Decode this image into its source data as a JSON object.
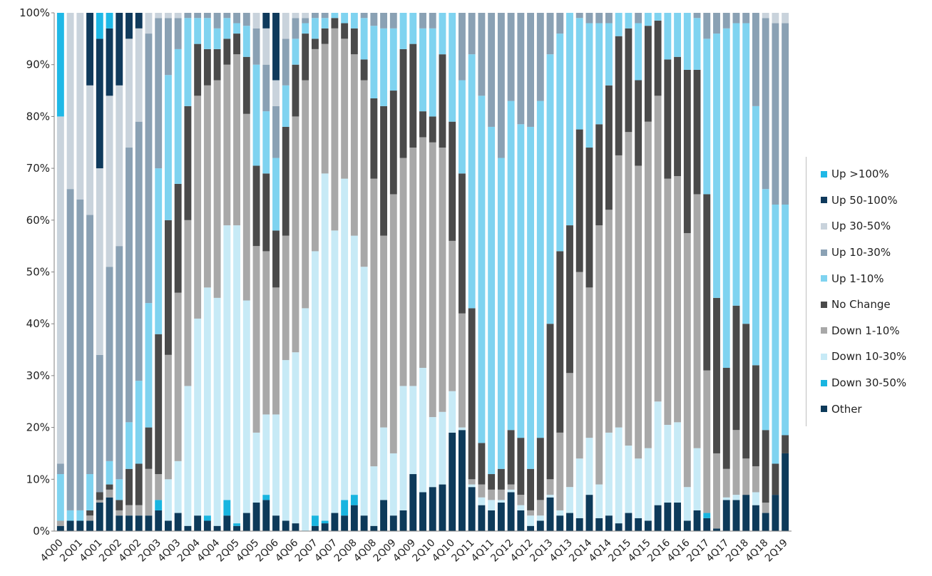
{
  "chart_data": {
    "type": "bar",
    "stacked": true,
    "percent_stacked": true,
    "title": "",
    "xlabel": "",
    "ylabel": "",
    "ylim": [
      0,
      100
    ],
    "y_ticks": [
      "0%",
      "10%",
      "20%",
      "30%",
      "40%",
      "50%",
      "60%",
      "70%",
      "80%",
      "90%",
      "100%"
    ],
    "x_tick_labels": [
      "4Q00",
      "2Q01",
      "4Q01",
      "2Q02",
      "4Q02",
      "2Q03",
      "4Q03",
      "2Q04",
      "4Q04",
      "2Q05",
      "4Q05",
      "2Q06",
      "4Q06",
      "2Q07",
      "4Q07",
      "2Q08",
      "4Q08",
      "2Q09",
      "4Q09",
      "2Q10",
      "4Q10",
      "2Q11",
      "4Q11",
      "2Q12",
      "4Q12",
      "2Q13",
      "4Q13",
      "2Q14",
      "4Q14",
      "2Q15",
      "4Q15",
      "2Q16",
      "4Q16",
      "2Q17",
      "4Q17",
      "2Q18",
      "4Q18",
      "2Q19"
    ],
    "grid": false,
    "legend_position": "right",
    "colors": {
      "Up >100%": "#1fb8e6",
      "Up 50-100%": "#0f3a5c",
      "Up 30-50%": "#c9d3dc",
      "Up 10-30%": "#8aa1b4",
      "Up 1-10%": "#7fd3f0",
      "No Change": "#4a4a4a",
      "Down 1-10%": "#a8a8a8",
      "Down 10-30%": "#c7eaf6",
      "Down 30-50%": "#19b5e0",
      "Other": "#0d3a5a"
    },
    "series_bottom_to_top": [
      "Other",
      "Down 30-50%",
      "Down 10-30%",
      "Down 1-10%",
      "No Change",
      "Up 1-10%",
      "Up 10-30%",
      "Up 30-50%",
      "Up 50-100%",
      "Up >100%"
    ],
    "cumulative_series_order": [
      "Other",
      "Down 30-50%",
      "Down 10-30%",
      "Down 1-10%",
      "No Change",
      "Up 1-10%",
      "Up 10-30%",
      "Up 30-50%",
      "Up 50-100%"
    ],
    "cumulative_tops": [
      [
        1,
        1,
        1,
        2,
        2,
        11,
        13,
        80,
        80,
        100
      ],
      [
        2,
        2,
        2,
        2,
        2,
        4,
        66,
        100,
        100,
        100
      ],
      [
        2,
        2,
        2,
        2,
        2,
        4,
        64,
        100,
        100,
        100
      ],
      [
        2,
        2,
        2,
        3,
        4,
        11,
        61,
        86,
        100,
        100
      ],
      [
        5.5,
        5.5,
        5.5,
        6,
        7.5,
        7.5,
        34,
        70,
        95,
        100
      ],
      [
        6.5,
        6.5,
        6.5,
        8,
        9,
        13.5,
        51,
        84,
        97,
        100
      ],
      [
        3,
        3,
        3,
        4,
        6,
        10,
        55,
        86,
        100,
        100
      ],
      [
        3,
        3,
        3,
        5,
        12,
        21,
        74,
        95,
        100,
        100
      ],
      [
        3,
        3,
        3,
        5,
        13,
        29,
        79,
        97,
        100,
        100
      ],
      [
        3,
        3,
        3,
        12,
        20,
        44,
        96,
        100,
        100,
        100
      ],
      [
        4,
        6,
        6,
        11,
        38,
        70,
        99,
        100,
        100,
        100
      ],
      [
        2,
        2,
        10,
        34,
        60,
        88,
        99,
        100,
        100,
        100
      ],
      [
        3.5,
        3.5,
        13.5,
        46,
        67,
        93,
        99,
        100,
        100,
        100
      ],
      [
        1,
        1,
        28,
        60,
        82,
        99,
        100,
        100,
        100,
        100
      ],
      [
        3,
        3,
        41,
        84,
        94,
        99,
        100,
        100,
        100,
        100
      ],
      [
        2,
        3,
        47,
        86,
        93,
        99,
        100,
        100,
        100,
        100
      ],
      [
        1,
        1,
        45,
        87,
        93,
        97,
        100,
        100,
        100,
        100
      ],
      [
        3,
        6,
        59,
        90,
        95,
        99,
        100,
        100,
        100,
        100
      ],
      [
        1,
        1.5,
        59,
        92,
        96,
        98,
        100,
        100,
        100,
        100
      ],
      [
        3.5,
        3.5,
        44.5,
        80.5,
        91.5,
        97.5,
        100,
        100,
        100,
        100
      ],
      [
        5.5,
        5.5,
        19,
        55,
        70.5,
        90,
        97,
        100,
        100,
        100
      ],
      [
        6,
        7,
        22.5,
        54,
        69,
        81,
        90,
        97,
        100,
        100
      ],
      [
        3,
        3,
        22.5,
        47,
        58,
        72,
        82,
        87,
        100,
        100
      ],
      [
        2,
        2,
        33,
        57,
        78,
        86,
        95,
        100,
        100,
        100
      ],
      [
        1.5,
        1.5,
        34.5,
        80,
        90,
        95,
        99,
        100,
        100,
        100
      ],
      [
        0,
        0,
        43,
        87,
        96,
        98,
        99,
        100,
        100,
        100
      ],
      [
        1,
        3,
        54,
        93,
        95,
        99,
        100,
        100,
        100,
        100
      ],
      [
        1.5,
        2,
        69,
        94,
        97,
        99,
        100,
        100,
        100,
        100
      ],
      [
        3.5,
        3.5,
        58,
        97,
        99,
        100,
        100,
        100,
        100,
        100
      ],
      [
        3,
        6,
        68,
        95,
        98,
        100,
        100,
        100,
        100,
        100
      ],
      [
        5,
        7,
        57,
        92,
        97,
        100,
        100,
        100,
        100,
        100
      ],
      [
        3,
        3,
        51,
        87,
        91,
        99,
        100,
        100,
        100,
        100
      ],
      [
        1,
        1,
        12.5,
        68,
        83.5,
        97.5,
        100,
        100,
        100,
        100
      ],
      [
        6,
        6,
        20,
        57,
        82,
        97,
        100,
        100,
        100,
        100
      ],
      [
        3,
        3,
        15,
        65,
        85,
        97,
        100,
        100,
        100,
        100
      ],
      [
        4,
        4,
        28,
        72,
        93,
        100,
        100,
        100,
        100,
        100
      ],
      [
        11,
        11,
        28,
        74,
        94,
        100,
        100,
        100,
        100,
        100
      ],
      [
        7.5,
        7.5,
        31.5,
        76,
        81,
        97,
        100,
        100,
        100,
        100
      ],
      [
        8.5,
        8.5,
        22,
        75,
        80,
        97,
        100,
        100,
        100,
        100
      ],
      [
        9,
        9,
        23,
        74,
        92,
        100,
        100,
        100,
        100,
        100
      ],
      [
        19,
        19,
        27,
        56,
        79,
        100,
        100,
        100,
        100,
        100
      ],
      [
        19.5,
        19.5,
        20,
        42,
        69,
        87,
        100,
        100,
        100,
        100
      ],
      [
        8.5,
        8.5,
        9,
        10,
        43,
        92,
        100,
        100,
        100,
        100
      ],
      [
        5,
        5,
        6.5,
        9,
        17,
        84,
        100,
        100,
        100,
        100
      ],
      [
        4,
        4,
        6,
        8,
        11,
        78,
        100,
        100,
        100,
        100
      ],
      [
        5.5,
        5.5,
        6,
        8,
        12,
        72,
        100,
        100,
        100,
        100
      ],
      [
        7.5,
        7.5,
        8,
        9,
        19.5,
        83,
        100,
        100,
        100,
        100
      ],
      [
        4,
        4,
        5,
        7,
        18,
        78.5,
        100,
        100,
        100,
        100
      ],
      [
        1,
        1,
        3,
        4,
        12,
        78,
        100,
        100,
        100,
        100
      ],
      [
        2,
        2,
        3,
        6,
        18,
        83,
        100,
        100,
        100,
        100
      ],
      [
        6.5,
        6.5,
        7,
        10,
        40,
        92,
        100,
        100,
        100,
        100
      ],
      [
        3,
        3,
        4,
        19,
        54,
        96,
        100,
        100,
        100,
        100
      ],
      [
        3.5,
        3.5,
        8.5,
        30.5,
        59,
        100,
        100,
        100,
        100,
        100
      ],
      [
        2.5,
        2.5,
        14,
        50,
        77.5,
        99,
        100,
        100,
        100,
        100
      ],
      [
        7,
        7,
        18,
        47,
        74,
        98,
        100,
        100,
        100,
        100
      ],
      [
        2.5,
        2.5,
        9,
        59,
        78.5,
        98,
        100,
        100,
        100,
        100
      ],
      [
        3,
        3,
        19,
        62,
        86,
        98,
        100,
        100,
        100,
        100
      ],
      [
        1.5,
        1.5,
        20,
        72.5,
        95.5,
        100,
        100,
        100,
        100,
        100
      ],
      [
        3.5,
        3.5,
        16.5,
        77,
        97,
        100,
        100,
        100,
        100,
        100
      ],
      [
        2.5,
        2.5,
        14,
        70.5,
        87,
        98,
        100,
        100,
        100,
        100
      ],
      [
        2,
        2,
        16,
        79,
        97.5,
        100,
        100,
        100,
        100,
        100
      ],
      [
        5,
        5,
        25,
        84,
        98.5,
        100,
        100,
        100,
        100,
        100
      ],
      [
        5.5,
        5.5,
        20.5,
        68,
        91,
        100,
        100,
        100,
        100,
        100
      ],
      [
        5.5,
        5.5,
        21,
        68.5,
        91.5,
        100,
        100,
        100,
        100,
        100
      ],
      [
        2,
        2,
        8.5,
        57.5,
        89,
        100,
        100,
        100,
        100,
        100
      ],
      [
        4,
        4,
        16,
        65,
        89,
        99,
        100,
        100,
        100,
        100
      ],
      [
        2.5,
        3.5,
        3.5,
        31,
        65,
        95,
        100,
        100,
        100,
        100
      ],
      [
        0.5,
        0.5,
        0.5,
        15,
        45,
        96,
        100,
        100,
        100,
        100
      ],
      [
        6,
        6,
        6.5,
        12,
        31.5,
        97,
        100,
        100,
        100,
        100
      ],
      [
        6,
        6,
        7,
        19.5,
        43.5,
        98,
        100,
        100,
        100,
        100
      ],
      [
        7,
        7,
        7,
        14,
        40,
        98,
        100,
        100,
        100,
        100
      ],
      [
        5,
        5,
        7.5,
        12.5,
        32,
        82,
        100,
        100,
        100,
        100
      ],
      [
        3.5,
        3.5,
        3.5,
        5.5,
        19.5,
        66,
        99,
        100,
        100,
        100
      ],
      [
        7,
        7,
        7,
        7,
        13,
        63,
        98,
        100,
        100,
        100
      ],
      [
        15,
        15,
        15,
        15,
        18.5,
        63,
        98,
        100,
        100,
        100
      ]
    ]
  },
  "legend": {
    "items": [
      "Up >100%",
      "Up 50-100%",
      "Up 30-50%",
      "Up 10-30%",
      "Up 1-10%",
      "No Change",
      "Down 1-10%",
      "Down 10-30%",
      "Down 30-50%",
      "Other"
    ]
  }
}
